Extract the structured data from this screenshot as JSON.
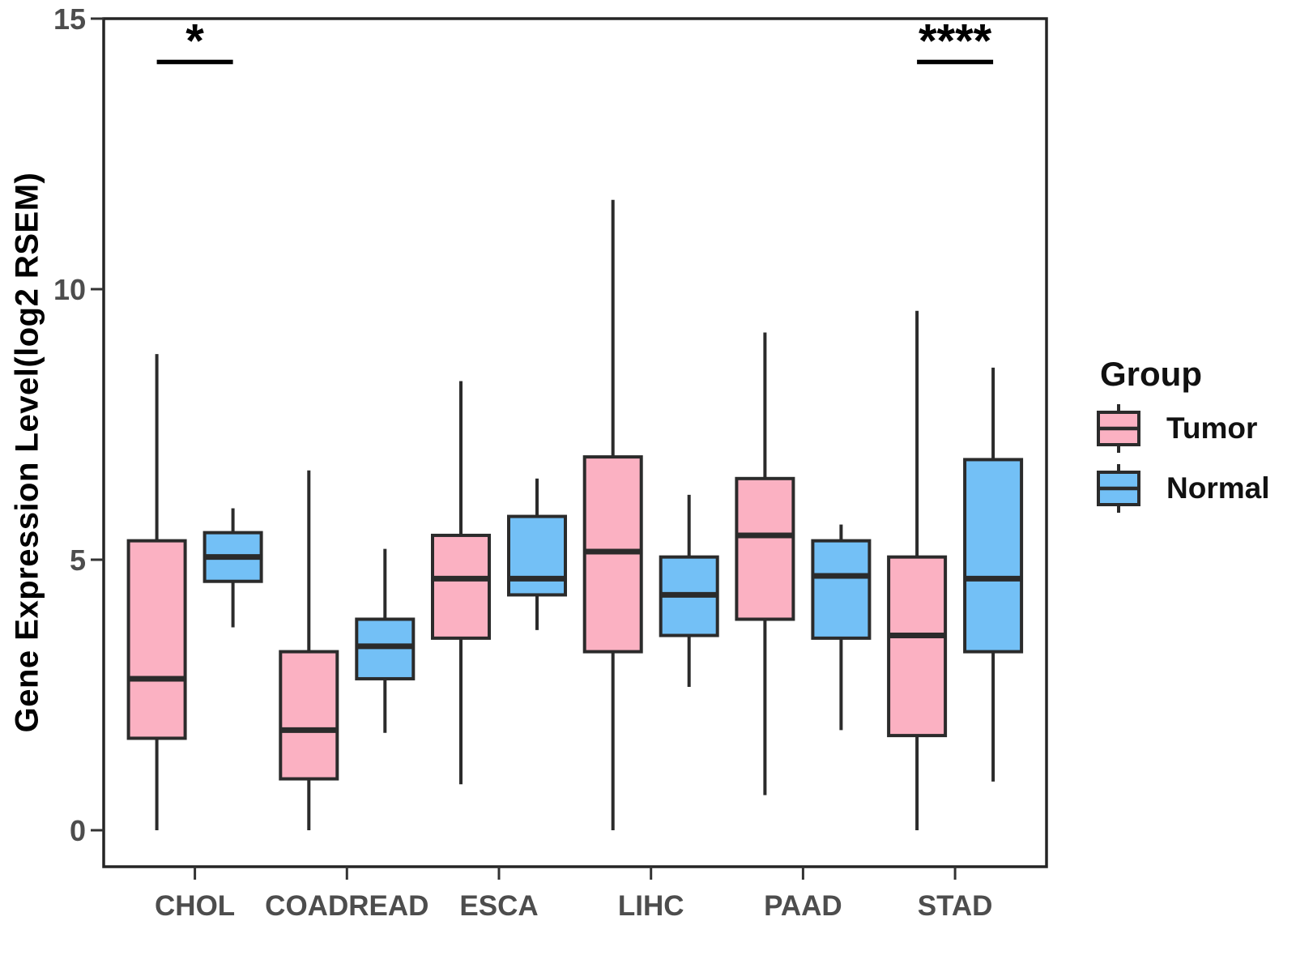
{
  "figure": {
    "y_axis_title": "Gene Expression Level(log2 RSEM)",
    "legend": {
      "title": "Group",
      "items": [
        {
          "label": "Tumor",
          "color": "#FBB1C2"
        },
        {
          "label": "Normal",
          "color": "#73C0F6"
        }
      ]
    }
  },
  "chart_data": {
    "type": "boxplot",
    "title": "",
    "xlabel": "",
    "ylabel": "Gene Expression Level(log2 RSEM)",
    "categories": [
      "CHOL",
      "COADREAD",
      "ESCA",
      "LIHC",
      "PAAD",
      "STAD"
    ],
    "yticks": [
      0,
      5,
      10,
      15
    ],
    "ylim": [
      -0.7,
      15
    ],
    "grid": false,
    "legend_position": "right",
    "box_border_color": "#2b2b2b",
    "axis_text_color": "#4d4d4d",
    "series": [
      {
        "name": "Tumor",
        "color": "#FBB1C2",
        "boxes": [
          {
            "category": "CHOL",
            "whisker_low": 0.0,
            "q1": 1.7,
            "median": 2.8,
            "q3": 5.35,
            "whisker_high": 8.8
          },
          {
            "category": "COADREAD",
            "whisker_low": 0.0,
            "q1": 0.95,
            "median": 1.85,
            "q3": 3.3,
            "whisker_high": 6.65
          },
          {
            "category": "ESCA",
            "whisker_low": 0.85,
            "q1": 3.55,
            "median": 4.65,
            "q3": 5.45,
            "whisker_high": 8.3
          },
          {
            "category": "LIHC",
            "whisker_low": 0.0,
            "q1": 3.3,
            "median": 5.15,
            "q3": 6.9,
            "whisker_high": 11.65
          },
          {
            "category": "PAAD",
            "whisker_low": 0.65,
            "q1": 3.9,
            "median": 5.45,
            "q3": 6.5,
            "whisker_high": 9.2
          },
          {
            "category": "STAD",
            "whisker_low": 0.0,
            "q1": 1.75,
            "median": 3.6,
            "q3": 5.05,
            "whisker_high": 9.6
          }
        ]
      },
      {
        "name": "Normal",
        "color": "#73C0F6",
        "boxes": [
          {
            "category": "CHOL",
            "whisker_low": 3.75,
            "q1": 4.6,
            "median": 5.05,
            "q3": 5.5,
            "whisker_high": 5.95
          },
          {
            "category": "COADREAD",
            "whisker_low": 1.8,
            "q1": 2.8,
            "median": 3.4,
            "q3": 3.9,
            "whisker_high": 5.2
          },
          {
            "category": "ESCA",
            "whisker_low": 3.7,
            "q1": 4.35,
            "median": 4.65,
            "q3": 5.8,
            "whisker_high": 6.5
          },
          {
            "category": "LIHC",
            "whisker_low": 2.65,
            "q1": 3.6,
            "median": 4.35,
            "q3": 5.05,
            "whisker_high": 6.2
          },
          {
            "category": "PAAD",
            "whisker_low": 1.85,
            "q1": 3.55,
            "median": 4.7,
            "q3": 5.35,
            "whisker_high": 5.65
          },
          {
            "category": "STAD",
            "whisker_low": 0.9,
            "q1": 3.3,
            "median": 4.65,
            "q3": 6.85,
            "whisker_high": 8.55
          }
        ]
      }
    ],
    "annotations": [
      {
        "group": "CHOL",
        "label": "*",
        "y": 14.2
      },
      {
        "group": "STAD",
        "label": "****",
        "y": 14.2
      }
    ]
  }
}
